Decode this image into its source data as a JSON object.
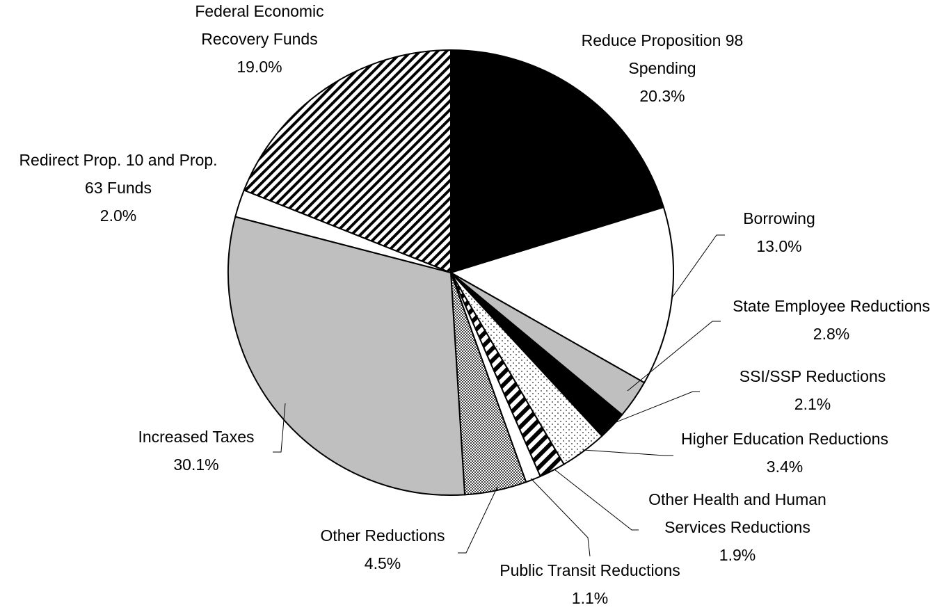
{
  "chart_data": {
    "type": "pie",
    "categories": [
      "Reduce Proposition 98 Spending",
      "Borrowing",
      "State Employee Reductions",
      "SSI/SSP Reductions",
      "Higher Education Reductions",
      "Other Health and Human Services Reductions",
      "Public Transit Reductions",
      "Other Reductions",
      "Increased Taxes",
      "Redirect Prop. 10 and Prop. 63 Funds",
      "Federal Economic Recovery Funds"
    ],
    "values": [
      20.3,
      13.0,
      2.8,
      2.1,
      3.4,
      1.9,
      1.1,
      4.5,
      30.1,
      2.0,
      19.0
    ],
    "value_labels": [
      "20.3%",
      "13.0%",
      "2.8%",
      "2.1%",
      "3.4%",
      "1.9%",
      "1.1%",
      "4.5%",
      "30.1%",
      "2.0%",
      "19.0%"
    ],
    "colors": [
      "#000000",
      "#ffffff",
      "#bfbfbf",
      "#000000",
      "#ffffff",
      "#ffffff",
      "#ffffff",
      "#ffffff",
      "#bfbfbf",
      "#ffffff",
      "#ffffff"
    ]
  }
}
